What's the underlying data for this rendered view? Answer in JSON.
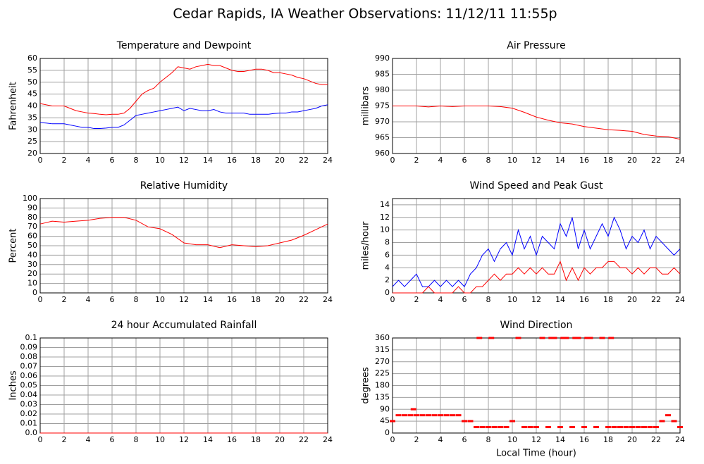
{
  "title": "Cedar Rapids, IA Weather Observations: 11/12/11 11:55p",
  "chart_data": [
    {
      "type": "line",
      "title": "Temperature and Dewpoint",
      "ylabel": "Fahrenheit",
      "x": [
        0,
        0.5,
        1,
        1.5,
        2,
        2.5,
        3,
        3.5,
        4,
        4.5,
        5,
        5.5,
        6,
        6.5,
        7,
        7.5,
        8,
        8.5,
        9,
        9.5,
        10,
        10.5,
        11,
        11.5,
        12,
        12.5,
        13,
        13.5,
        14,
        14.5,
        15,
        15.5,
        16,
        16.5,
        17,
        17.5,
        18,
        18.5,
        19,
        19.5,
        20,
        20.5,
        21,
        21.5,
        22,
        22.5,
        23,
        23.5,
        24
      ],
      "series": [
        {
          "color": "#ff0000",
          "values": [
            41,
            40.5,
            40,
            40,
            40,
            39,
            38,
            37.5,
            37,
            36.8,
            36.5,
            36.3,
            36.5,
            36.5,
            37,
            39,
            42,
            45,
            46.5,
            47.5,
            50,
            52,
            54,
            56.5,
            56,
            55.5,
            56.5,
            57,
            57.5,
            57,
            57,
            56,
            55,
            54.5,
            54.5,
            55,
            55.5,
            55.5,
            55,
            54,
            54,
            53.5,
            53,
            52,
            51.5,
            50.5,
            49.5,
            49,
            49
          ]
        },
        {
          "color": "#0000ff",
          "values": [
            33,
            32.8,
            32.5,
            32.5,
            32.5,
            32,
            31.5,
            31,
            31,
            30.5,
            30.5,
            30.7,
            31,
            31,
            32,
            34,
            36,
            36.5,
            37,
            37.5,
            38,
            38.5,
            39,
            39.5,
            38,
            39,
            38.5,
            38,
            38,
            38.5,
            37.5,
            37,
            37,
            37,
            37,
            36.5,
            36.5,
            36.5,
            36.5,
            36.8,
            37,
            37,
            37.5,
            37.5,
            38,
            38.5,
            39,
            40,
            40.5
          ]
        }
      ],
      "xlim": [
        0,
        24
      ],
      "xticks": [
        0,
        2,
        4,
        6,
        8,
        10,
        12,
        14,
        16,
        18,
        20,
        22,
        24
      ],
      "ylim": [
        20,
        60
      ],
      "yticks": [
        20,
        25,
        30,
        35,
        40,
        45,
        50,
        55,
        60
      ],
      "grid": true
    },
    {
      "type": "line",
      "title": "Air Pressure",
      "ylabel": "millibars",
      "x": [
        0,
        1,
        2,
        3,
        4,
        5,
        6,
        7,
        8,
        9,
        10,
        11,
        12,
        13,
        14,
        15,
        16,
        17,
        18,
        19,
        20,
        21,
        22,
        23,
        24
      ],
      "series": [
        {
          "color": "#ff0000",
          "values": [
            975,
            975,
            975,
            974.7,
            975,
            974.8,
            975,
            975,
            975,
            974.8,
            974.3,
            973,
            971.5,
            970.5,
            969.7,
            969.3,
            968.5,
            968,
            967.5,
            967.3,
            967,
            966,
            965.5,
            965.3,
            964.5
          ]
        }
      ],
      "xlim": [
        0,
        24
      ],
      "xticks": [
        0,
        2,
        4,
        6,
        8,
        10,
        12,
        14,
        16,
        18,
        20,
        22,
        24
      ],
      "ylim": [
        960,
        990
      ],
      "yticks": [
        960,
        965,
        970,
        975,
        980,
        985,
        990
      ],
      "grid": true
    },
    {
      "type": "line",
      "title": "Relative Humidity",
      "ylabel": "Percent",
      "x": [
        0,
        1,
        2,
        3,
        4,
        5,
        6,
        7,
        8,
        9,
        10,
        11,
        12,
        13,
        14,
        15,
        16,
        17,
        18,
        19,
        20,
        21,
        22,
        23,
        24
      ],
      "series": [
        {
          "color": "#ff0000",
          "values": [
            73,
            76,
            75,
            76,
            77,
            79,
            80,
            80,
            77,
            70,
            68,
            62,
            53,
            51,
            51,
            48,
            51,
            50,
            49,
            50,
            53,
            56,
            61,
            67,
            73
          ]
        }
      ],
      "xlim": [
        0,
        24
      ],
      "xticks": [
        0,
        2,
        4,
        6,
        8,
        10,
        12,
        14,
        16,
        18,
        20,
        22,
        24
      ],
      "ylim": [
        0,
        100
      ],
      "yticks": [
        0,
        10,
        20,
        30,
        40,
        50,
        60,
        70,
        80,
        90,
        100
      ],
      "grid": true
    },
    {
      "type": "line",
      "title": "Wind Speed and Peak Gust",
      "ylabel": "miles/hour",
      "x": [
        0,
        0.5,
        1,
        1.5,
        2,
        2.5,
        3,
        3.5,
        4,
        4.5,
        5,
        5.5,
        6,
        6.5,
        7,
        7.5,
        8,
        8.5,
        9,
        9.5,
        10,
        10.5,
        11,
        11.5,
        12,
        12.5,
        13,
        13.5,
        14,
        14.5,
        15,
        15.5,
        16,
        16.5,
        17,
        17.5,
        18,
        18.5,
        19,
        19.5,
        20,
        20.5,
        21,
        21.5,
        22,
        22.5,
        23,
        23.5,
        24
      ],
      "series": [
        {
          "color": "#0000ff",
          "values": [
            1,
            2,
            1,
            2,
            3,
            1,
            1,
            2,
            1,
            2,
            1,
            2,
            1,
            3,
            4,
            6,
            7,
            5,
            7,
            8,
            6,
            10,
            7,
            9,
            6,
            9,
            8,
            7,
            11,
            9,
            12,
            7,
            10,
            7,
            9,
            11,
            9,
            12,
            10,
            7,
            9,
            8,
            10,
            7,
            9,
            8,
            7,
            6,
            7
          ]
        },
        {
          "color": "#ff0000",
          "values": [
            0,
            0,
            0,
            0,
            0,
            0,
            1,
            0,
            0,
            0,
            0,
            1,
            0,
            0,
            1,
            1,
            2,
            3,
            2,
            3,
            3,
            4,
            3,
            4,
            3,
            4,
            3,
            3,
            5,
            2,
            4,
            2,
            4,
            3,
            4,
            4,
            5,
            5,
            4,
            4,
            3,
            4,
            3,
            4,
            4,
            3,
            3,
            4,
            3
          ]
        }
      ],
      "xlim": [
        0,
        24
      ],
      "xticks": [
        0,
        2,
        4,
        6,
        8,
        10,
        12,
        14,
        16,
        18,
        20,
        22,
        24
      ],
      "ylim": [
        0,
        15
      ],
      "yticks": [
        0,
        2,
        4,
        6,
        8,
        10,
        12,
        14
      ],
      "grid": true
    },
    {
      "type": "line",
      "title": "24 hour Accumulated Rainfall",
      "ylabel": "Inches",
      "x": [
        0,
        24
      ],
      "series": [
        {
          "color": "#ff0000",
          "values": [
            0,
            0
          ]
        }
      ],
      "xlim": [
        0,
        24
      ],
      "xticks": [
        0,
        2,
        4,
        6,
        8,
        10,
        12,
        14,
        16,
        18,
        20,
        22,
        24
      ],
      "ylim": [
        0,
        0.1
      ],
      "yticks": [
        {
          "value": 0,
          "label": "0.0"
        },
        0.01,
        0.02,
        0.03,
        0.04,
        0.05,
        0.06,
        0.07,
        0.08,
        0.09,
        {
          "value": 0.1,
          "label": "0.1"
        }
      ],
      "grid": true
    },
    {
      "type": "scatter",
      "title": "Wind Direction",
      "ylabel": "degrees",
      "xlabel": "Local Time (hour)",
      "x": [
        0,
        0.5,
        1,
        1.5,
        1.75,
        2,
        2.5,
        3,
        3.5,
        4,
        4.5,
        5,
        5.5,
        6,
        6.5,
        7,
        7.25,
        7.5,
        8,
        8.25,
        8.5,
        9,
        9.5,
        10,
        10.5,
        11,
        11.5,
        12,
        12.5,
        13,
        13.25,
        13.5,
        14,
        14.25,
        14.5,
        15,
        15.25,
        15.5,
        16,
        16.25,
        16.5,
        17,
        17.5,
        18,
        18.25,
        18.5,
        19,
        19.5,
        20,
        20.5,
        21,
        21.5,
        22,
        22.5,
        23,
        23.5,
        24
      ],
      "series": [
        {
          "color": "#ff0000",
          "values": [
            45,
            67.5,
            67.5,
            67.5,
            90,
            67.5,
            67.5,
            67.5,
            67.5,
            67.5,
            67.5,
            67.5,
            67.5,
            45,
            45,
            22.5,
            360,
            22.5,
            22.5,
            360,
            22.5,
            22.5,
            22.5,
            45,
            360,
            22.5,
            22.5,
            22.5,
            360,
            22.5,
            360,
            360,
            22.5,
            360,
            360,
            22.5,
            360,
            360,
            22.5,
            360,
            360,
            22.5,
            360,
            22.5,
            360,
            22.5,
            22.5,
            22.5,
            22.5,
            22.5,
            22.5,
            22.5,
            22.5,
            45,
            67.5,
            45,
            22.5
          ]
        }
      ],
      "xlim": [
        0,
        24
      ],
      "xticks": [
        0,
        2,
        4,
        6,
        8,
        10,
        12,
        14,
        16,
        18,
        20,
        22,
        24
      ],
      "ylim": [
        0,
        360
      ],
      "yticks": [
        0,
        45,
        90,
        135,
        180,
        225,
        270,
        315,
        360
      ],
      "grid": true
    }
  ]
}
